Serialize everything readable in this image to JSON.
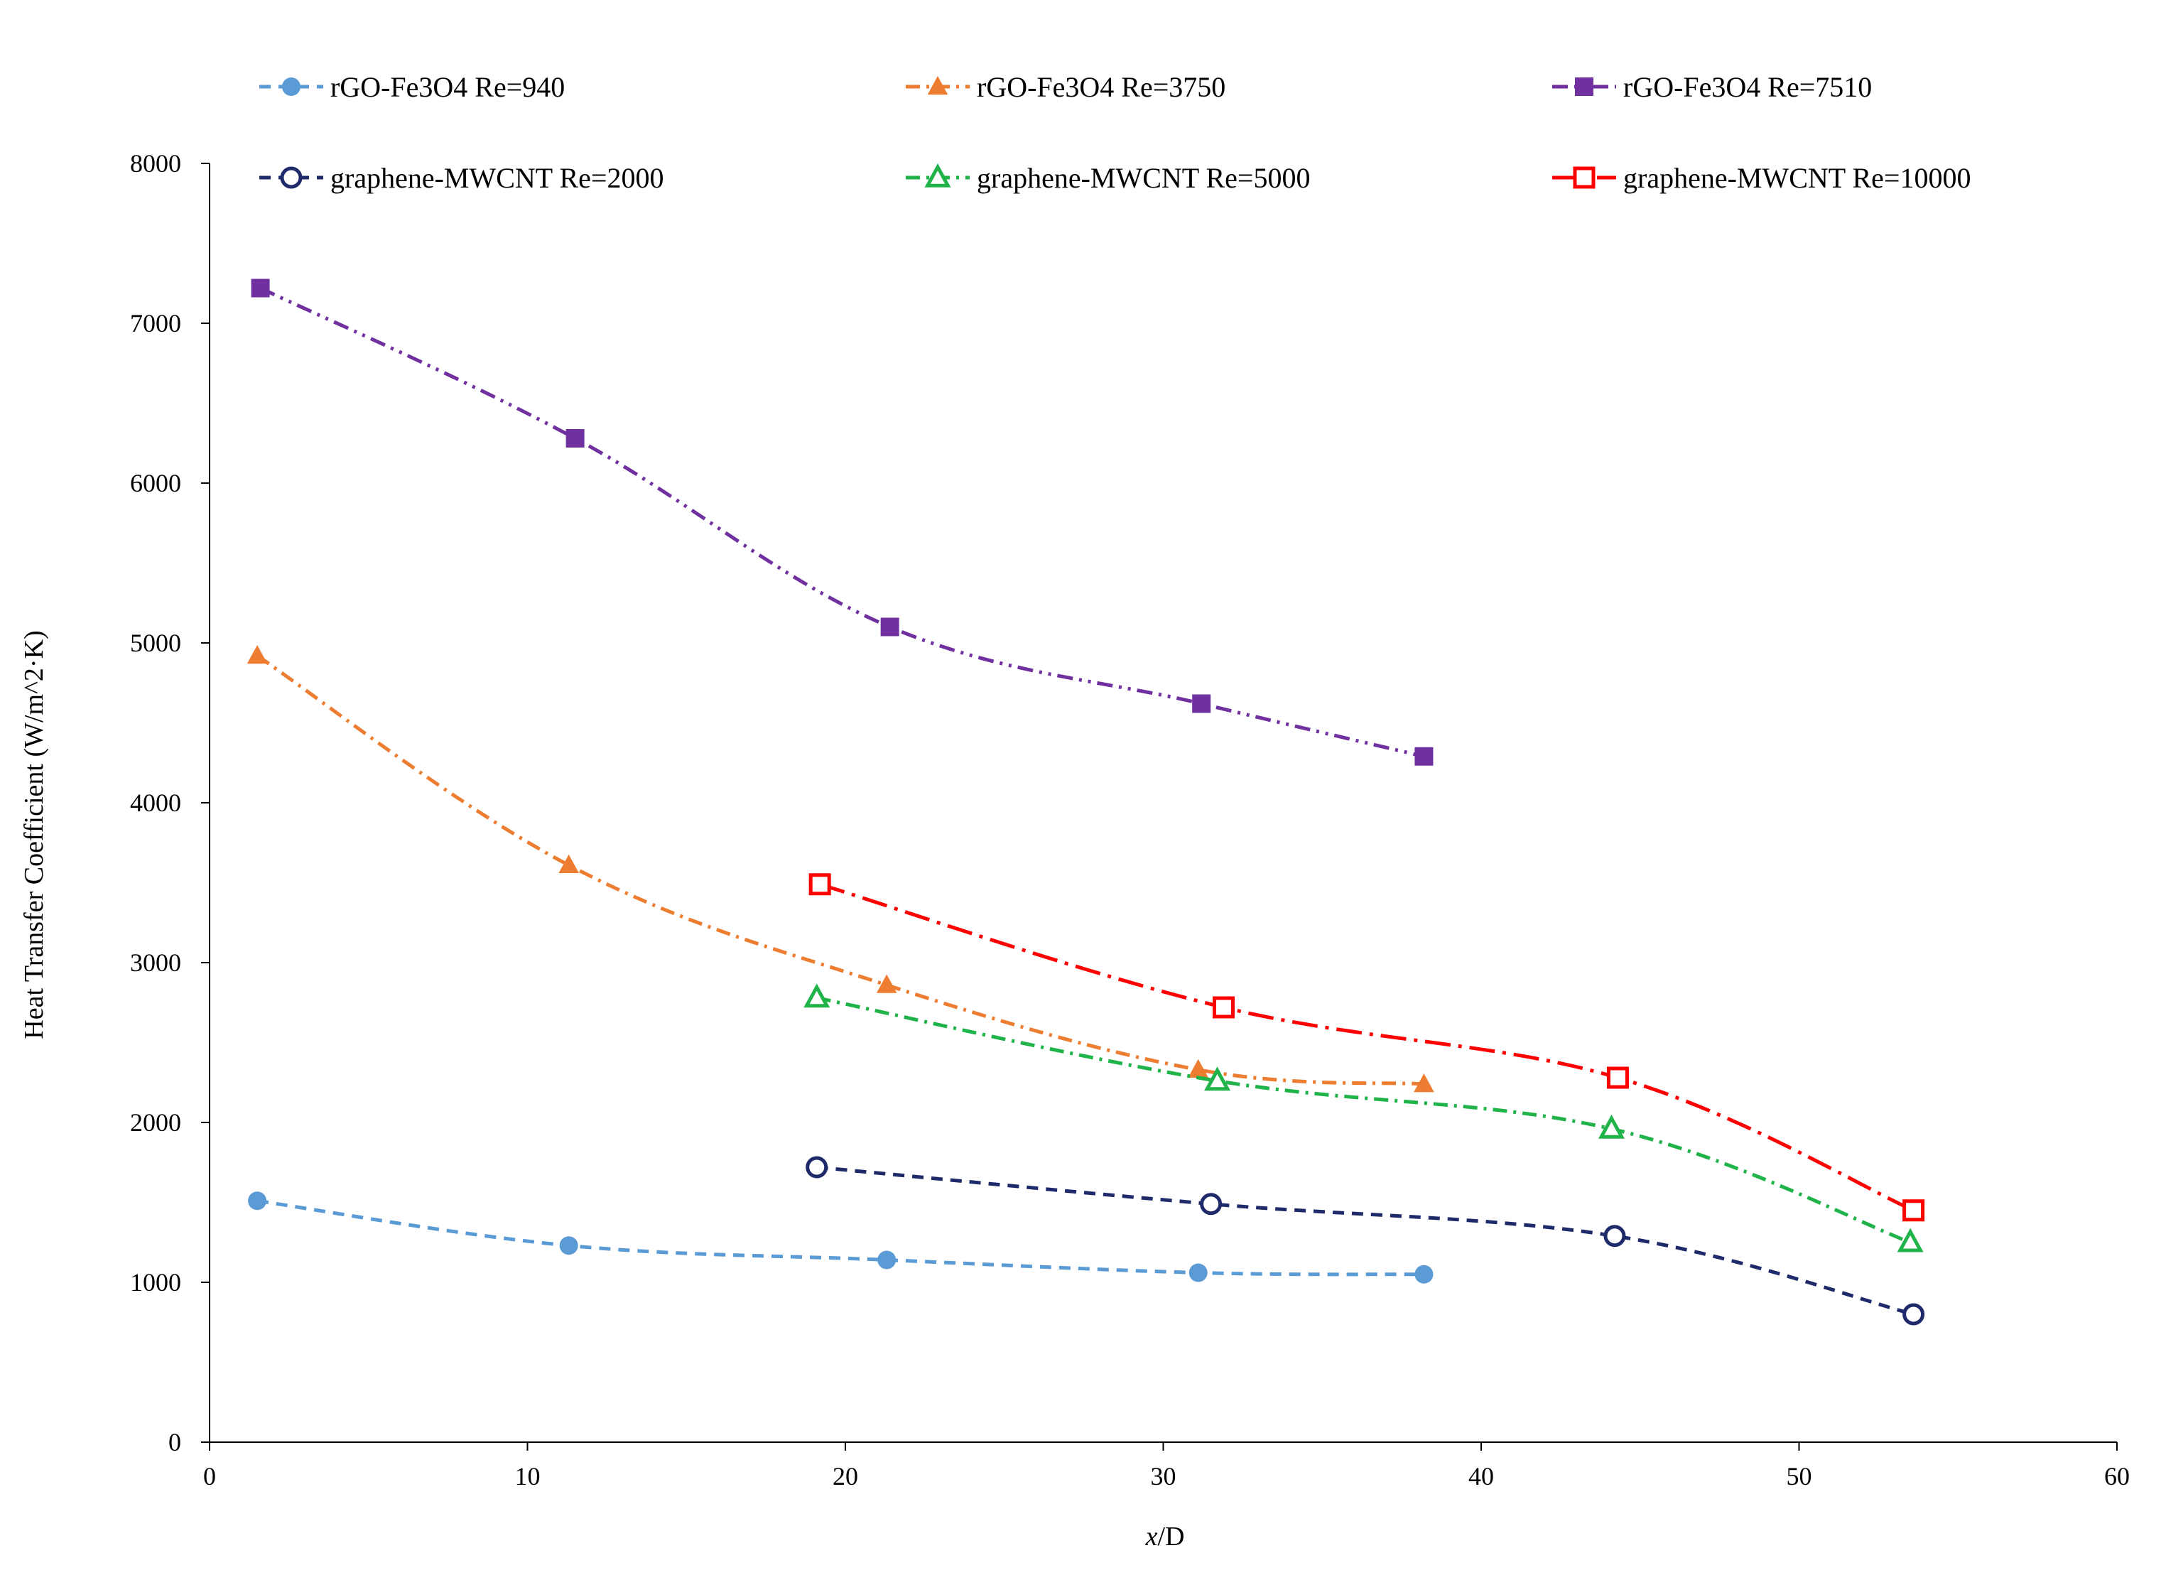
{
  "chart_data": {
    "type": "line",
    "title": "",
    "xlabel_italic": "x",
    "xlabel_rest": "/D",
    "ylabel": "Heat Transfer Coefficient  (W/m^2·K)",
    "xlim": [
      0,
      60
    ],
    "ylim": [
      0,
      8000
    ],
    "xticks": [
      0,
      10,
      20,
      30,
      40,
      50,
      60
    ],
    "yticks": [
      0,
      1000,
      2000,
      3000,
      4000,
      5000,
      6000,
      7000,
      8000
    ],
    "grid": false,
    "legend_position": "top",
    "series": [
      {
        "name": "rGO-Fe3O4 Re=940",
        "color": "#5b9bd5",
        "dash": "dashed",
        "marker": "circle",
        "filled": true,
        "x": [
          1.5,
          11.3,
          21.3,
          31.1,
          38.2
        ],
        "y": [
          1510,
          1230,
          1140,
          1060,
          1050
        ]
      },
      {
        "name": "rGO-Fe3O4 Re=3750",
        "color": "#ed7d31",
        "dash": "dashdot",
        "marker": "triangle",
        "filled": true,
        "x": [
          1.5,
          11.3,
          21.3,
          31.1,
          38.2
        ],
        "y": [
          4920,
          3610,
          2860,
          2330,
          2240
        ]
      },
      {
        "name": "rGO-Fe3O4 Re=7510",
        "color": "#7030a0",
        "dash": "dashdotdot",
        "marker": "square",
        "filled": true,
        "x": [
          1.6,
          11.5,
          21.4,
          31.2,
          38.2
        ],
        "y": [
          7220,
          6280,
          5100,
          4620,
          4290
        ]
      },
      {
        "name": "graphene-MWCNT Re=2000",
        "color": "#1f2a6b",
        "dash": "dashed",
        "marker": "circle",
        "filled": false,
        "x": [
          19.1,
          31.5,
          44.2,
          53.6
        ],
        "y": [
          1720,
          1490,
          1290,
          800
        ]
      },
      {
        "name": "graphene-MWCNT Re=5000",
        "color": "#1fb34a",
        "dash": "dashdot",
        "marker": "triangle",
        "filled": false,
        "x": [
          19.1,
          31.7,
          44.1,
          53.5
        ],
        "y": [
          2780,
          2260,
          1960,
          1250
        ]
      },
      {
        "name": "graphene-MWCNT Re=10000",
        "color": "#ff0000",
        "dash": "longdashdot",
        "marker": "square",
        "filled": false,
        "x": [
          19.2,
          31.9,
          44.3,
          53.6
        ],
        "y": [
          3490,
          2720,
          2280,
          1450
        ]
      }
    ]
  }
}
